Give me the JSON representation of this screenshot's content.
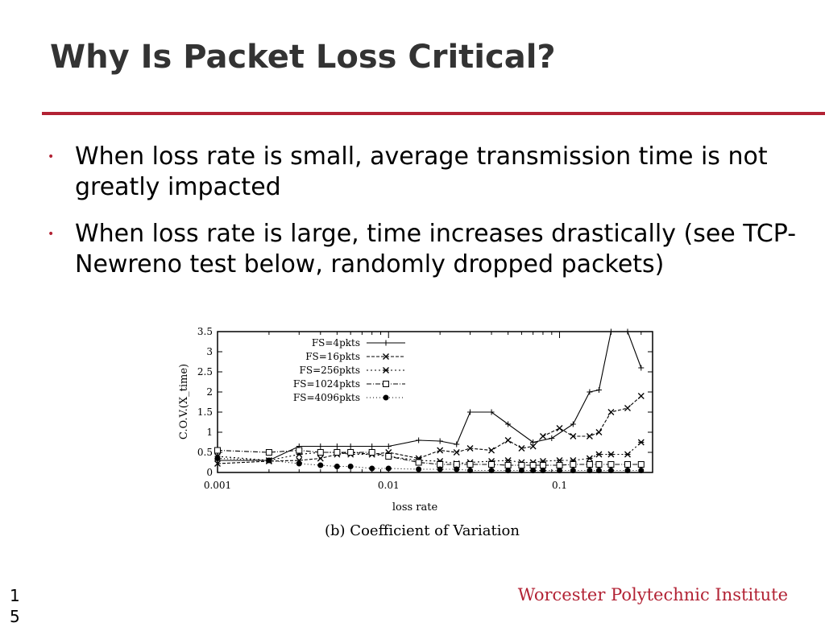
{
  "slide": {
    "title": "Why Is Packet Loss Critical?",
    "bullets": [
      "When loss rate is small, average transmission time is not greatly impacted",
      "When loss rate is large, time increases drastically (see TCP-Newreno test below, randomly dropped packets)"
    ],
    "footer": "Worcester Polytechnic Institute",
    "page_number": "15",
    "accent_color": "#b22234"
  },
  "chart_data": {
    "type": "line",
    "title": "",
    "caption": "(b) Coefficient of Variation",
    "xlabel": "loss rate",
    "ylabel": "C.O.V.(X_time)",
    "x_scale": "log",
    "xlim": [
      0.001,
      0.35
    ],
    "ylim": [
      0,
      3.5
    ],
    "x_ticks": [
      {
        "value": 0.001,
        "label": "0.001"
      },
      {
        "value": 0.01,
        "label": "0.01"
      },
      {
        "value": 0.1,
        "label": "0.1"
      }
    ],
    "y_ticks": [
      {
        "value": 0,
        "label": "0"
      },
      {
        "value": 0.5,
        "label": "0.5"
      },
      {
        "value": 1,
        "label": "1"
      },
      {
        "value": 1.5,
        "label": "1.5"
      },
      {
        "value": 2,
        "label": "2"
      },
      {
        "value": 2.5,
        "label": "2.5"
      },
      {
        "value": 3,
        "label": "3"
      },
      {
        "value": 3.5,
        "label": "3.5"
      }
    ],
    "legend_position": "top-center",
    "grid": false,
    "series": [
      {
        "name": "FS=4pkts",
        "marker": "plus",
        "dash": "",
        "points": [
          [
            0.001,
            0.3
          ],
          [
            0.002,
            0.3
          ],
          [
            0.003,
            0.65
          ],
          [
            0.004,
            0.65
          ],
          [
            0.005,
            0.65
          ],
          [
            0.006,
            0.65
          ],
          [
            0.008,
            0.65
          ],
          [
            0.01,
            0.65
          ],
          [
            0.015,
            0.8
          ],
          [
            0.02,
            0.78
          ],
          [
            0.025,
            0.7
          ],
          [
            0.03,
            1.5
          ],
          [
            0.04,
            1.5
          ],
          [
            0.05,
            1.2
          ],
          [
            0.07,
            0.75
          ],
          [
            0.09,
            0.85
          ],
          [
            0.12,
            1.2
          ],
          [
            0.15,
            2.0
          ],
          [
            0.17,
            2.05
          ],
          [
            0.2,
            3.5
          ],
          [
            0.25,
            3.5
          ],
          [
            0.3,
            2.6
          ]
        ]
      },
      {
        "name": "FS=16pkts",
        "marker": "x",
        "dash": "4 2",
        "points": [
          [
            0.001,
            0.22
          ],
          [
            0.002,
            0.28
          ],
          [
            0.003,
            0.3
          ],
          [
            0.004,
            0.35
          ],
          [
            0.005,
            0.45
          ],
          [
            0.006,
            0.5
          ],
          [
            0.008,
            0.45
          ],
          [
            0.01,
            0.5
          ],
          [
            0.015,
            0.35
          ],
          [
            0.02,
            0.55
          ],
          [
            0.025,
            0.5
          ],
          [
            0.03,
            0.6
          ],
          [
            0.04,
            0.55
          ],
          [
            0.05,
            0.8
          ],
          [
            0.06,
            0.6
          ],
          [
            0.07,
            0.65
          ],
          [
            0.08,
            0.9
          ],
          [
            0.1,
            1.1
          ],
          [
            0.12,
            0.9
          ],
          [
            0.15,
            0.9
          ],
          [
            0.17,
            1.0
          ],
          [
            0.2,
            1.5
          ],
          [
            0.25,
            1.6
          ],
          [
            0.3,
            1.9
          ]
        ]
      },
      {
        "name": "FS=256pkts",
        "marker": "star",
        "dash": "2 3",
        "points": [
          [
            0.001,
            0.4
          ],
          [
            0.002,
            0.3
          ],
          [
            0.003,
            0.45
          ],
          [
            0.004,
            0.5
          ],
          [
            0.005,
            0.5
          ],
          [
            0.006,
            0.45
          ],
          [
            0.008,
            0.45
          ],
          [
            0.01,
            0.4
          ],
          [
            0.015,
            0.3
          ],
          [
            0.02,
            0.28
          ],
          [
            0.025,
            0.22
          ],
          [
            0.03,
            0.25
          ],
          [
            0.04,
            0.28
          ],
          [
            0.05,
            0.3
          ],
          [
            0.06,
            0.25
          ],
          [
            0.07,
            0.25
          ],
          [
            0.08,
            0.28
          ],
          [
            0.1,
            0.3
          ],
          [
            0.12,
            0.3
          ],
          [
            0.15,
            0.35
          ],
          [
            0.17,
            0.45
          ],
          [
            0.2,
            0.45
          ],
          [
            0.25,
            0.45
          ],
          [
            0.3,
            0.75
          ]
        ]
      },
      {
        "name": "FS=1024pkts",
        "marker": "square",
        "dash": "6 2 1 2",
        "points": [
          [
            0.001,
            0.55
          ],
          [
            0.002,
            0.5
          ],
          [
            0.003,
            0.55
          ],
          [
            0.004,
            0.5
          ],
          [
            0.005,
            0.5
          ],
          [
            0.006,
            0.5
          ],
          [
            0.008,
            0.5
          ],
          [
            0.01,
            0.4
          ],
          [
            0.015,
            0.25
          ],
          [
            0.02,
            0.2
          ],
          [
            0.025,
            0.2
          ],
          [
            0.03,
            0.2
          ],
          [
            0.04,
            0.2
          ],
          [
            0.05,
            0.18
          ],
          [
            0.06,
            0.18
          ],
          [
            0.07,
            0.18
          ],
          [
            0.08,
            0.18
          ],
          [
            0.1,
            0.18
          ],
          [
            0.12,
            0.2
          ],
          [
            0.15,
            0.2
          ],
          [
            0.17,
            0.2
          ],
          [
            0.2,
            0.2
          ],
          [
            0.25,
            0.2
          ],
          [
            0.3,
            0.2
          ]
        ]
      },
      {
        "name": "FS=4096pkts",
        "marker": "circle",
        "dash": "1 3",
        "points": [
          [
            0.001,
            0.35
          ],
          [
            0.002,
            0.3
          ],
          [
            0.003,
            0.22
          ],
          [
            0.004,
            0.18
          ],
          [
            0.005,
            0.15
          ],
          [
            0.006,
            0.15
          ],
          [
            0.008,
            0.1
          ],
          [
            0.01,
            0.1
          ],
          [
            0.015,
            0.08
          ],
          [
            0.02,
            0.08
          ],
          [
            0.025,
            0.08
          ],
          [
            0.03,
            0.05
          ],
          [
            0.04,
            0.05
          ],
          [
            0.05,
            0.05
          ],
          [
            0.06,
            0.05
          ],
          [
            0.07,
            0.05
          ],
          [
            0.08,
            0.05
          ],
          [
            0.1,
            0.05
          ],
          [
            0.12,
            0.05
          ],
          [
            0.15,
            0.05
          ],
          [
            0.17,
            0.05
          ],
          [
            0.2,
            0.05
          ],
          [
            0.25,
            0.05
          ],
          [
            0.3,
            0.05
          ]
        ]
      }
    ]
  }
}
